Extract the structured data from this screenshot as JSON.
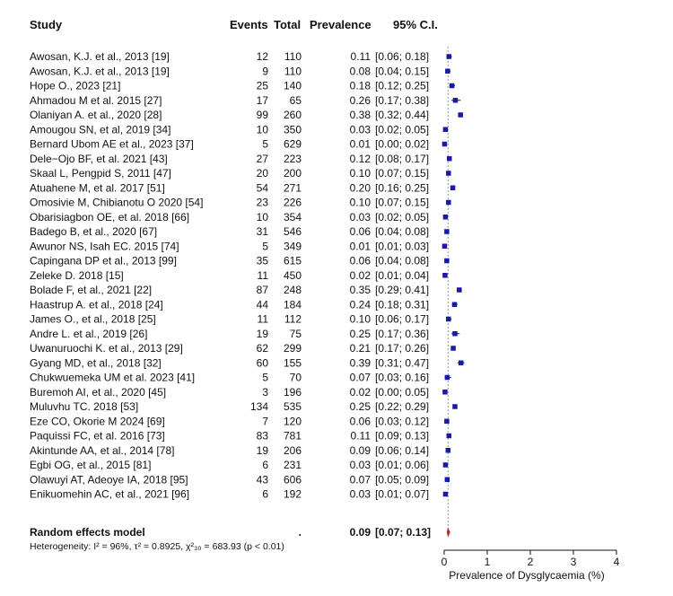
{
  "headers": {
    "study": "Study",
    "events": "Events",
    "total": "Total",
    "prevalence": "Prevalence",
    "ci": "95% C.I."
  },
  "chart_data": {
    "type": "forest",
    "xlabel": "Prevalence of Dysglycaemia (%)",
    "xlim": [
      0,
      4
    ],
    "xticks": [
      0,
      1,
      2,
      3,
      4
    ],
    "studies": [
      {
        "study": "Awosan, K.J. et al., 2013 [19]",
        "events": "12",
        "total": "110",
        "prev": "0.11",
        "ci": "[0.06; 0.18]",
        "p": 0.11,
        "lo": 0.06,
        "hi": 0.18
      },
      {
        "study": "Awosan, K.J. et al., 2013 [19]",
        "events": "9",
        "total": "110",
        "prev": "0.08",
        "ci": "[0.04; 0.15]",
        "p": 0.08,
        "lo": 0.04,
        "hi": 0.15
      },
      {
        "study": "Hope O., 2023 [21]",
        "events": "25",
        "total": "140",
        "prev": "0.18",
        "ci": "[0.12; 0.25]",
        "p": 0.18,
        "lo": 0.12,
        "hi": 0.25
      },
      {
        "study": "Ahmadou M et al. 2015 [27]",
        "events": "17",
        "total": "65",
        "prev": "0.26",
        "ci": "[0.17; 0.38]",
        "p": 0.26,
        "lo": 0.17,
        "hi": 0.38
      },
      {
        "study": "Olaniyan A. et al., 2020 [28]",
        "events": "99",
        "total": "260",
        "prev": "0.38",
        "ci": "[0.32; 0.44]",
        "p": 0.38,
        "lo": 0.32,
        "hi": 0.44
      },
      {
        "study": "Amougou SN, et al, 2019 [34]",
        "events": "10",
        "total": "350",
        "prev": "0.03",
        "ci": "[0.02; 0.05]",
        "p": 0.03,
        "lo": 0.02,
        "hi": 0.05
      },
      {
        "study": "Bernard Ubom AE et al., 2023 [37]",
        "events": "5",
        "total": "629",
        "prev": "0.01",
        "ci": "[0.00; 0.02]",
        "p": 0.01,
        "lo": 0.0,
        "hi": 0.02
      },
      {
        "study": "Dele−Ojo BF, et al. 2021 [43]",
        "events": "27",
        "total": "223",
        "prev": "0.12",
        "ci": "[0.08; 0.17]",
        "p": 0.12,
        "lo": 0.08,
        "hi": 0.17
      },
      {
        "study": "Skaal L, Pengpid S, 2011 [47]",
        "events": "20",
        "total": "200",
        "prev": "0.10",
        "ci": "[0.07; 0.15]",
        "p": 0.1,
        "lo": 0.07,
        "hi": 0.15
      },
      {
        "study": "Atuahene M, et al. 2017 [51]",
        "events": "54",
        "total": "271",
        "prev": "0.20",
        "ci": "[0.16; 0.25]",
        "p": 0.2,
        "lo": 0.16,
        "hi": 0.25
      },
      {
        "study": "Omosivie M, Chibianotu O 2020 [54]",
        "events": "23",
        "total": "226",
        "prev": "0.10",
        "ci": "[0.07; 0.15]",
        "p": 0.1,
        "lo": 0.07,
        "hi": 0.15
      },
      {
        "study": "Obarisiagbon OE, et al. 2018 [66]",
        "events": "10",
        "total": "354",
        "prev": "0.03",
        "ci": "[0.02; 0.05]",
        "p": 0.03,
        "lo": 0.02,
        "hi": 0.05
      },
      {
        "study": "Badego B, et al., 2020 [67]",
        "events": "31",
        "total": "546",
        "prev": "0.06",
        "ci": "[0.04; 0.08]",
        "p": 0.06,
        "lo": 0.04,
        "hi": 0.08
      },
      {
        "study": "Awunor NS, Isah EC. 2015 [74]",
        "events": "5",
        "total": "349",
        "prev": "0.01",
        "ci": "[0.01; 0.03]",
        "p": 0.01,
        "lo": 0.01,
        "hi": 0.03
      },
      {
        "study": "Capingana DP et al., 2013 [99]",
        "events": "35",
        "total": "615",
        "prev": "0.06",
        "ci": "[0.04; 0.08]",
        "p": 0.06,
        "lo": 0.04,
        "hi": 0.08
      },
      {
        "study": "Zeleke D. 2018 [15]",
        "events": "11",
        "total": "450",
        "prev": "0.02",
        "ci": "[0.01; 0.04]",
        "p": 0.02,
        "lo": 0.01,
        "hi": 0.04
      },
      {
        "study": "Bolade F, et al., 2021 [22]",
        "events": "87",
        "total": "248",
        "prev": "0.35",
        "ci": "[0.29; 0.41]",
        "p": 0.35,
        "lo": 0.29,
        "hi": 0.41
      },
      {
        "study": "Haastrup A. et al., 2018 [24]",
        "events": "44",
        "total": "184",
        "prev": "0.24",
        "ci": "[0.18; 0.31]",
        "p": 0.24,
        "lo": 0.18,
        "hi": 0.31
      },
      {
        "study": "James O., et al., 2018 [25]",
        "events": "11",
        "total": "112",
        "prev": "0.10",
        "ci": "[0.06; 0.17]",
        "p": 0.1,
        "lo": 0.06,
        "hi": 0.17
      },
      {
        "study": "Andre L. et al., 2019 [26]",
        "events": "19",
        "total": "75",
        "prev": "0.25",
        "ci": "[0.17; 0.36]",
        "p": 0.25,
        "lo": 0.17,
        "hi": 0.36
      },
      {
        "study": "Uwanuruochi K. et al., 2013 [29]",
        "events": "62",
        "total": "299",
        "prev": "0.21",
        "ci": "[0.17; 0.26]",
        "p": 0.21,
        "lo": 0.17,
        "hi": 0.26
      },
      {
        "study": "Gyang MD, et al., 2018 [32]",
        "events": "60",
        "total": "155",
        "prev": "0.39",
        "ci": "[0.31; 0.47]",
        "p": 0.39,
        "lo": 0.31,
        "hi": 0.47
      },
      {
        "study": "Chukwuemeka UM et al. 2023 [41]",
        "events": "5",
        "total": "70",
        "prev": "0.07",
        "ci": "[0.03; 0.16]",
        "p": 0.07,
        "lo": 0.03,
        "hi": 0.16
      },
      {
        "study": "Buremoh AI, et al., 2020 [45]",
        "events": "3",
        "total": "196",
        "prev": "0.02",
        "ci": "[0.00; 0.05]",
        "p": 0.02,
        "lo": 0.0,
        "hi": 0.05
      },
      {
        "study": "Muluvhu TC. 2018 [53]",
        "events": "134",
        "total": "535",
        "prev": "0.25",
        "ci": "[0.22; 0.29]",
        "p": 0.25,
        "lo": 0.22,
        "hi": 0.29
      },
      {
        "study": "Eze CO, Okorie M 2024 [69]",
        "events": "7",
        "total": "120",
        "prev": "0.06",
        "ci": "[0.03; 0.12]",
        "p": 0.06,
        "lo": 0.03,
        "hi": 0.12
      },
      {
        "study": "Paquissi FC, et al. 2016 [73]",
        "events": "83",
        "total": "781",
        "prev": "0.11",
        "ci": "[0.09; 0.13]",
        "p": 0.11,
        "lo": 0.09,
        "hi": 0.13
      },
      {
        "study": "Akintunde AA, et al., 2014 [78]",
        "events": "19",
        "total": "206",
        "prev": "0.09",
        "ci": "[0.06; 0.14]",
        "p": 0.09,
        "lo": 0.06,
        "hi": 0.14
      },
      {
        "study": "Egbi OG, et al., 2015 [81]",
        "events": "6",
        "total": "231",
        "prev": "0.03",
        "ci": "[0.01; 0.06]",
        "p": 0.03,
        "lo": 0.01,
        "hi": 0.06
      },
      {
        "study": "Olawuyi AT, Adeoye IA, 2018 [95]",
        "events": "43",
        "total": "606",
        "prev": "0.07",
        "ci": "[0.05; 0.09]",
        "p": 0.07,
        "lo": 0.05,
        "hi": 0.09
      },
      {
        "study": "Enikuomehin AC, et al., 2021 [96]",
        "events": "6",
        "total": "192",
        "prev": "0.03",
        "ci": "[0.01; 0.07]",
        "p": 0.03,
        "lo": 0.01,
        "hi": 0.07
      }
    ],
    "summary": {
      "label": "Random effects model",
      "events": ".",
      "prev": "0.09",
      "ci": "[0.07; 0.13]",
      "p": 0.09,
      "lo": 0.07,
      "hi": 0.13
    },
    "heterogeneity": "Heterogeneity: I² = 96%, τ² = 0.8925, χ²₃₀ = 683.93 (p < 0.01)",
    "colors": {
      "box": "#1a1aa8",
      "diamond": "#b03020",
      "refline": "#9a9a9a",
      "text": "#111111"
    }
  }
}
